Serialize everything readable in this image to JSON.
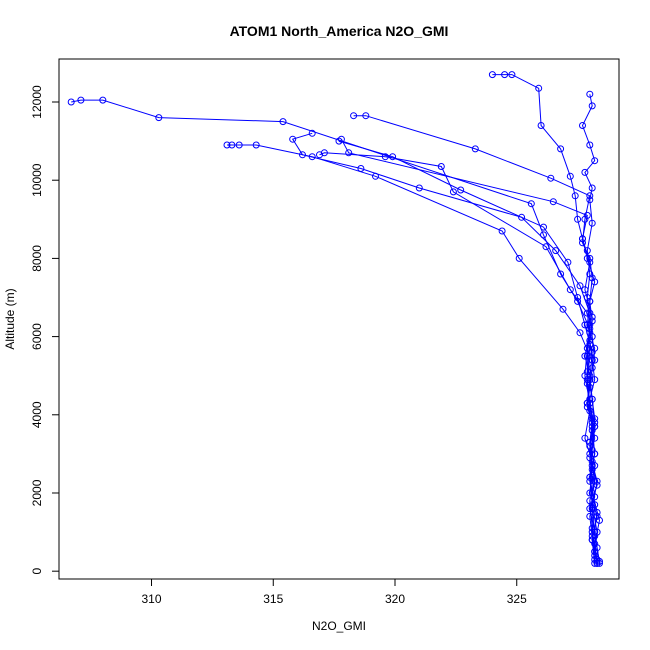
{
  "chart_data": {
    "type": "line",
    "title": "ATOM1 North_America N2O_GMI",
    "xlabel": "N2O_GMI",
    "ylabel": "Altitude (m)",
    "xlim": [
      306.2,
      329.2
    ],
    "ylim": [
      -200,
      13100
    ],
    "xticks": [
      310,
      315,
      320,
      325
    ],
    "yticks": [
      0,
      2000,
      4000,
      6000,
      8000,
      10000,
      12000
    ],
    "grid": false,
    "legend": "none",
    "marker": "open-circle",
    "color": "#0000ff",
    "series": [
      {
        "x": [
          328.3,
          328.2,
          328.1,
          328.0,
          328.2,
          328.1,
          328.0,
          328.1,
          327.9,
          328.0,
          328.1,
          328.2,
          327.9,
          328.0,
          328.1,
          328.0,
          327.7,
          327.8,
          328.0,
          326.4,
          323.3,
          318.8,
          318.3
        ],
        "y": [
          200,
          500,
          1100,
          1800,
          2300,
          2700,
          3300,
          3800,
          4200,
          4700,
          5200,
          5700,
          6300,
          6900,
          7500,
          8000,
          8400,
          9000,
          9600,
          10050,
          10800,
          11650,
          11650
        ]
      },
      {
        "x": [
          328.4,
          328.3,
          328.2,
          328.0,
          328.3,
          328.1,
          327.8,
          328.0,
          327.9,
          327.9,
          328.0,
          327.5,
          326.8,
          326.1,
          325.6,
          315.4,
          310.3,
          308.0,
          307.1,
          306.7
        ],
        "y": [
          200,
          600,
          1000,
          1600,
          2200,
          2800,
          3400,
          4100,
          4800,
          5500,
          6200,
          6900,
          7600,
          8600,
          9400,
          11500,
          11600,
          12050,
          12050,
          12000
        ]
      },
      {
        "x": [
          328.3,
          328.2,
          328.1,
          328.0,
          328.2,
          328.1,
          328.0,
          328.2,
          328.1,
          328.0,
          328.2,
          328.1,
          328.0,
          328.1,
          328.0,
          328.2,
          327.9,
          327.7,
          327.5,
          327.4,
          327.2,
          326.8,
          326.0,
          325.9,
          324.8,
          324.5,
          324.0
        ],
        "y": [
          200,
          500,
          900,
          1400,
          1900,
          2400,
          2900,
          3400,
          3900,
          4400,
          4900,
          5400,
          5900,
          6400,
          6900,
          7400,
          8000,
          8500,
          9000,
          9600,
          10100,
          10800,
          11400,
          12350,
          12700,
          12700,
          12700
        ]
      },
      {
        "x": [
          328.2,
          328.1,
          328.3,
          328.0,
          328.1,
          328.0,
          328.2,
          327.9,
          328.0,
          328.2,
          328.1,
          328.0,
          327.6,
          326.6,
          325.2,
          321.0,
          318.6,
          316.2,
          315.8,
          316.6
        ],
        "y": [
          300,
          800,
          1400,
          2000,
          2600,
          3200,
          3800,
          4300,
          4900,
          5400,
          6000,
          6600,
          7300,
          8200,
          9050,
          9800,
          10300,
          10650,
          11050,
          11200
        ]
      },
      {
        "x": [
          328.3,
          328.2,
          328.4,
          328.1,
          328.2,
          328.0,
          328.2,
          328.1,
          328.0,
          327.8,
          328.0,
          327.9,
          327.2,
          326.2,
          322.4,
          321.9,
          319.6,
          317.1,
          316.9
        ],
        "y": [
          250,
          700,
          1300,
          2000,
          2700,
          3300,
          3900,
          4400,
          5000,
          5500,
          6100,
          6600,
          7200,
          8300,
          9700,
          10350,
          10600,
          10700,
          10650
        ]
      },
      {
        "x": [
          328.2,
          328.1,
          328.3,
          328.0,
          328.2,
          328.1,
          327.9,
          328.0,
          328.1,
          327.8,
          327.5,
          327.1,
          326.1,
          322.7,
          319.9,
          317.7
        ],
        "y": [
          200,
          800,
          1500,
          2300,
          3000,
          3700,
          4300,
          4900,
          5600,
          6300,
          7000,
          7900,
          8800,
          9750,
          10600,
          11000
        ]
      },
      {
        "x": [
          328.3,
          328.1,
          328.2,
          328.0,
          328.1,
          328.2,
          328.0,
          327.9,
          328.0,
          327.6,
          326.9,
          325.1,
          324.4,
          319.2,
          316.6,
          314.3,
          313.6,
          313.3,
          313.1
        ],
        "y": [
          300,
          1000,
          1700,
          2400,
          3100,
          3700,
          4300,
          4900,
          5500,
          6100,
          6700,
          8000,
          8700,
          10100,
          10600,
          10900,
          10900,
          10900,
          10900
        ]
      },
      {
        "x": [
          328.4,
          328.2,
          328.1,
          328.3,
          328.0,
          328.2,
          328.1,
          327.9,
          328.0,
          328.1,
          327.8,
          328.0,
          327.7,
          327.9,
          326.5,
          318.1,
          317.8
        ],
        "y": [
          250,
          900,
          1600,
          2300,
          3000,
          3700,
          4400,
          5100,
          5800,
          6500,
          7200,
          7900,
          8500,
          9100,
          9450,
          10700,
          11050
        ]
      },
      {
        "x": [
          328.2,
          328.3,
          328.1,
          328.0,
          328.2,
          328.1,
          328.0,
          327.8,
          327.9,
          328.0,
          327.9,
          328.0,
          327.9,
          328.1,
          328.0,
          328.1,
          327.8,
          328.2,
          328.0,
          327.7,
          328.1,
          328.0
        ],
        "y": [
          400,
          1000,
          1700,
          2400,
          3000,
          3600,
          4300,
          5000,
          5700,
          6300,
          7000,
          7600,
          8200,
          8900,
          9500,
          9800,
          10200,
          10500,
          10900,
          11400,
          11900,
          12200
        ]
      }
    ]
  }
}
